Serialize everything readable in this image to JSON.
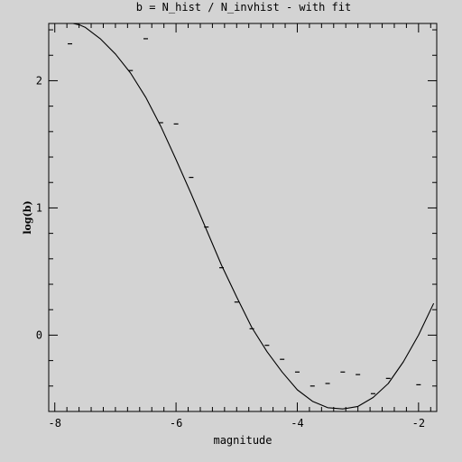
{
  "chart_data": {
    "type": "scatter",
    "title": "b = N_hist / N_invhist - with fit",
    "xlabel": "magnitude",
    "ylabel": "log(b)",
    "xlim": [
      -8.1,
      -1.7
    ],
    "ylim": [
      -0.6,
      2.45
    ],
    "x_ticks": [
      -8,
      -6,
      -4,
      -2
    ],
    "x_tick_labels": [
      "-8",
      "-6",
      "-4",
      "-2"
    ],
    "y_ticks": [
      0,
      1,
      2
    ],
    "y_tick_labels": [
      "0",
      "1",
      "2"
    ],
    "x_minor_step": 0.2,
    "y_minor_step": 0.2,
    "grid": false,
    "series": [
      {
        "kind": "points",
        "marker": "dash",
        "x": [
          -7.75,
          -6.75,
          -6.5,
          -6.25,
          -6.0,
          -5.75,
          -5.5,
          -5.25,
          -5.0,
          -4.75,
          -4.5,
          -4.25,
          -4.0,
          -3.75,
          -3.5,
          -3.25,
          -3.0,
          -2.75,
          -2.5,
          -2.0
        ],
        "y": [
          2.29,
          2.08,
          2.33,
          1.67,
          1.66,
          1.24,
          0.85,
          0.53,
          0.26,
          0.05,
          -0.08,
          -0.19,
          -0.29,
          -0.4,
          -0.38,
          -0.29,
          -0.31,
          -0.46,
          -0.34,
          -0.39
        ]
      },
      {
        "kind": "line",
        "x": [
          -7.7,
          -7.6,
          -7.5,
          -7.25,
          -7.0,
          -6.75,
          -6.5,
          -6.25,
          -6.0,
          -5.75,
          -5.5,
          -5.25,
          -5.0,
          -4.75,
          -4.5,
          -4.25,
          -4.0,
          -3.75,
          -3.5,
          -3.25,
          -3.0,
          -2.75,
          -2.5,
          -2.25,
          -2.0,
          -1.75
        ],
        "y": [
          2.45,
          2.44,
          2.42,
          2.33,
          2.21,
          2.06,
          1.87,
          1.64,
          1.38,
          1.11,
          0.83,
          0.55,
          0.3,
          0.06,
          -0.13,
          -0.29,
          -0.43,
          -0.52,
          -0.57,
          -0.58,
          -0.56,
          -0.49,
          -0.38,
          -0.21,
          0.0,
          0.25
        ]
      }
    ]
  }
}
